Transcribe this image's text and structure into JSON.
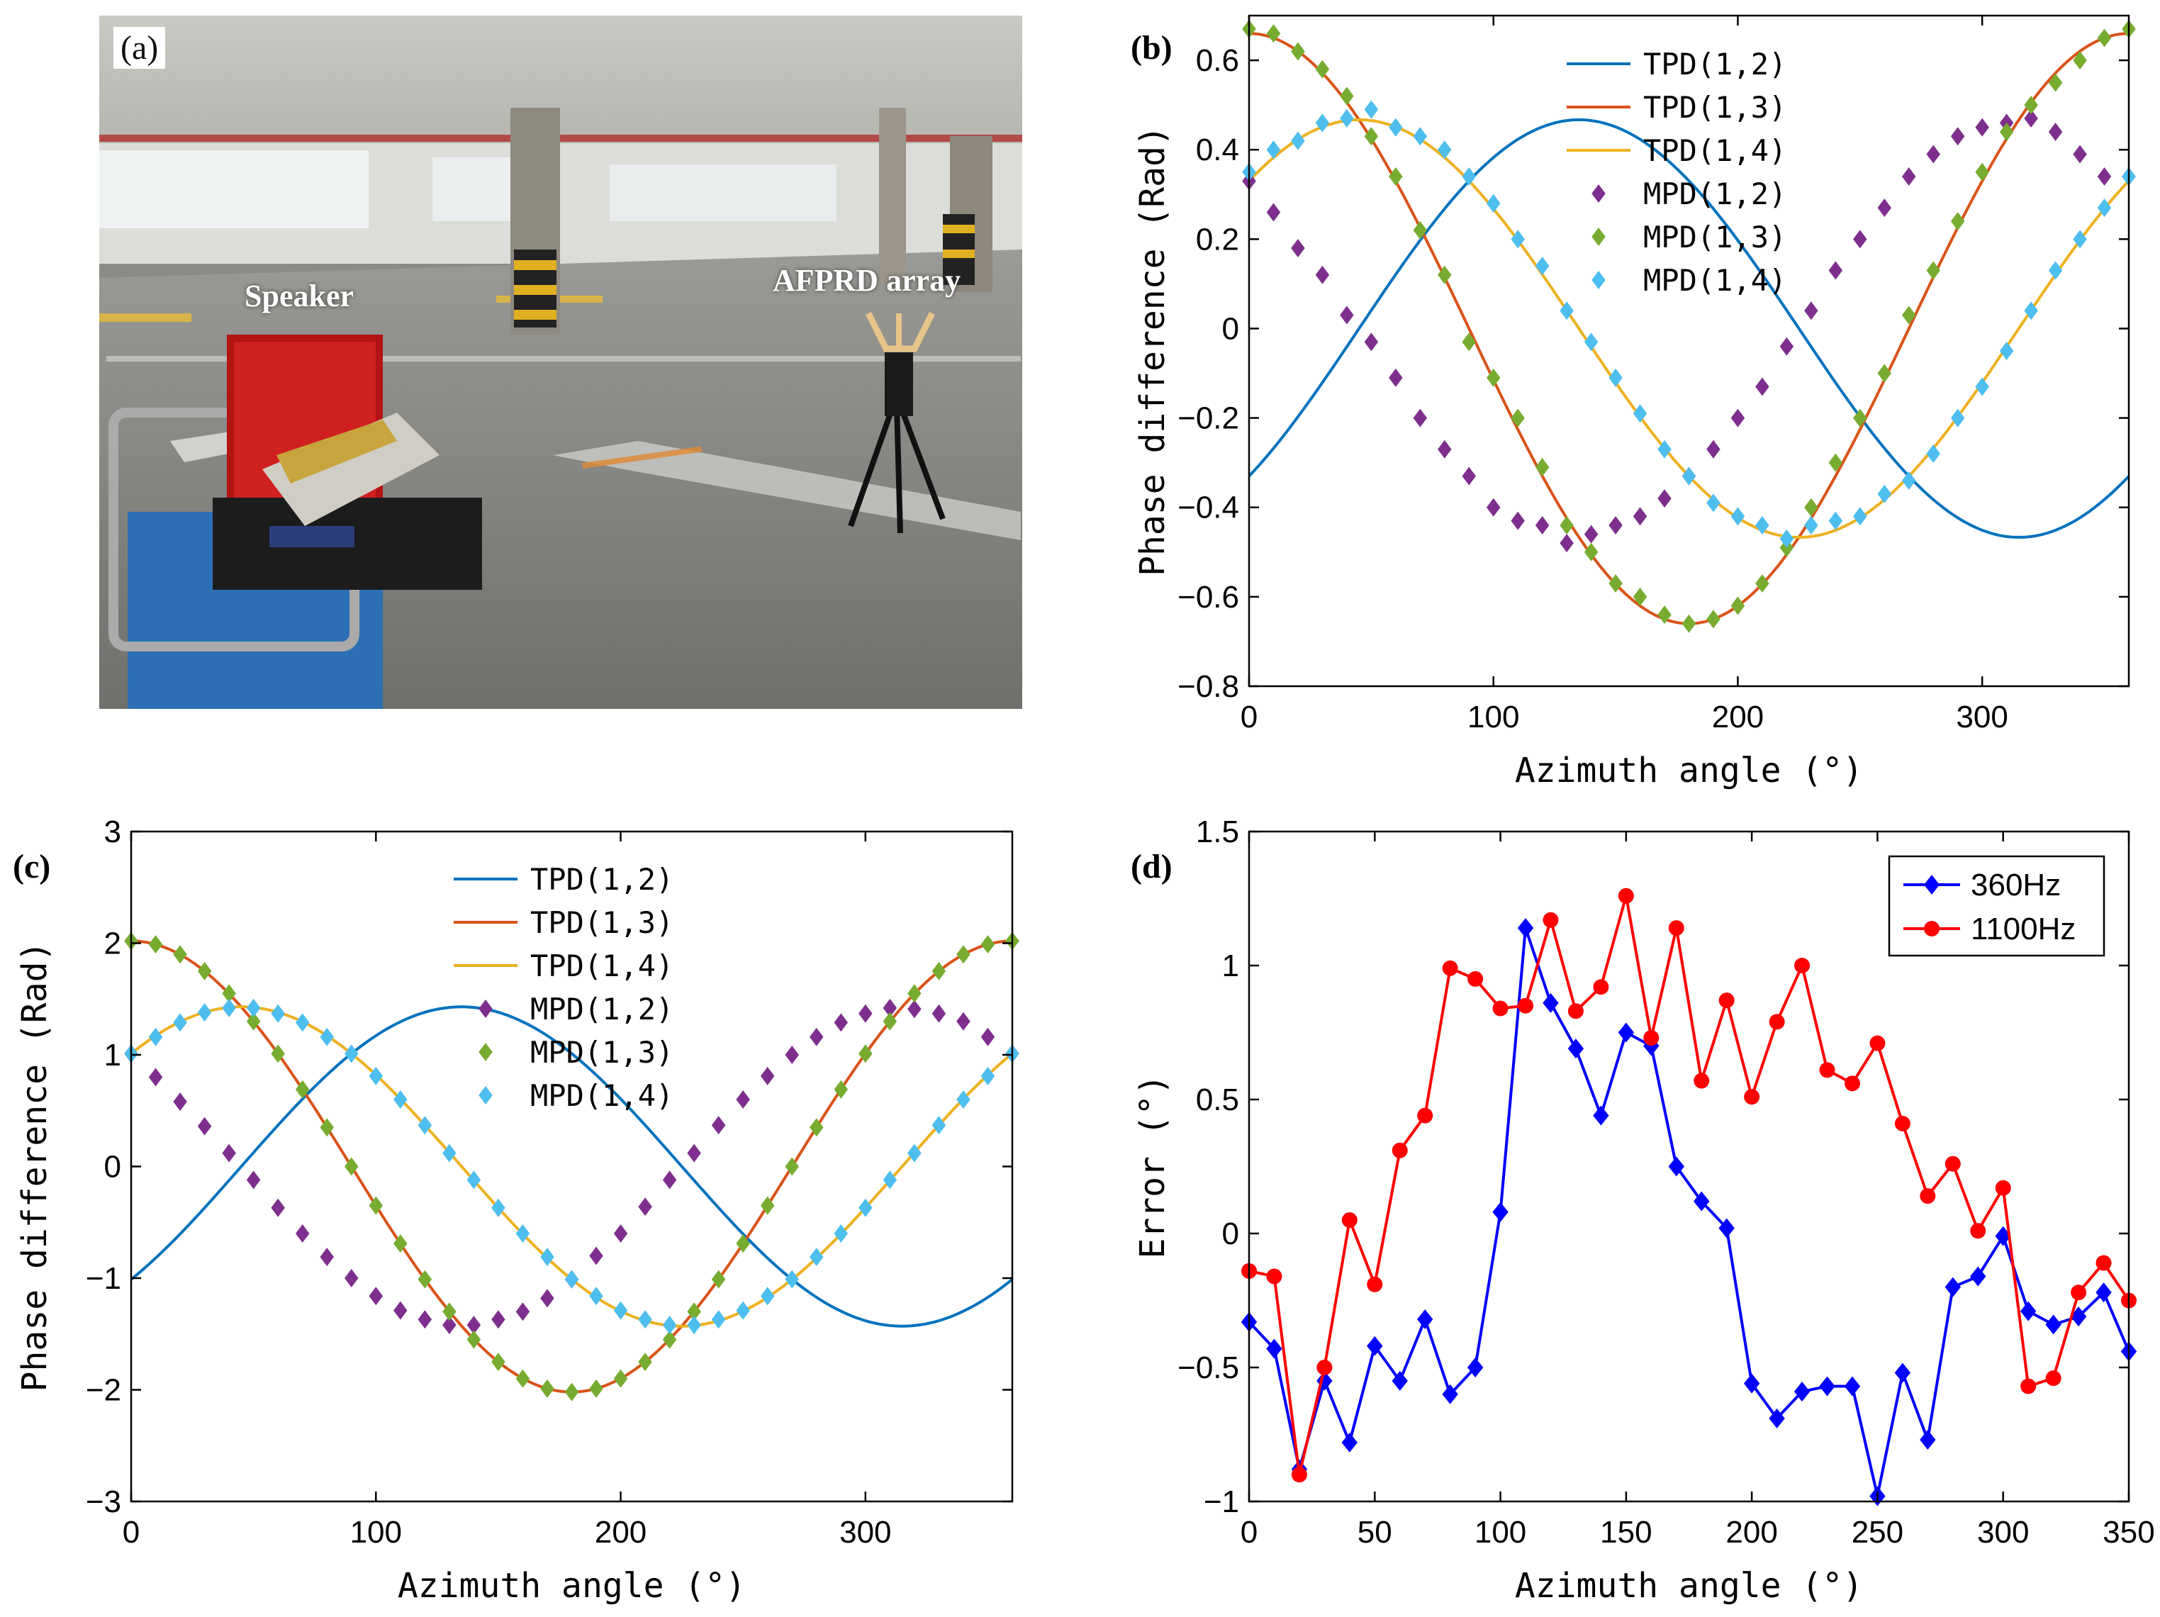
{
  "photo_panel": {
    "label": "(a)",
    "speaker_label": "Speaker",
    "array_label": "AFPRD array"
  },
  "chart_data": [
    {
      "panel": "(b)",
      "type": "line",
      "xlabel": "Azimuth angle (°)",
      "ylabel": "Phase difference (Rad)",
      "xlim": [
        0,
        360
      ],
      "ylim": [
        -0.8,
        0.7
      ],
      "xticks": [
        0,
        100,
        200,
        300
      ],
      "yticks": [
        -0.8,
        -0.6,
        -0.4,
        -0.2,
        0,
        0.2,
        0.4,
        0.6
      ],
      "ytick_labels": [
        "−0.8",
        "−0.6",
        "−0.4",
        "−0.2",
        "0",
        "0.2",
        "0.4",
        "0.6"
      ],
      "legend_position": "top-center",
      "x": [
        0,
        10,
        20,
        30,
        40,
        50,
        60,
        70,
        80,
        90,
        100,
        110,
        120,
        130,
        140,
        150,
        160,
        170,
        180,
        190,
        200,
        210,
        220,
        230,
        240,
        250,
        260,
        270,
        280,
        290,
        300,
        310,
        320,
        330,
        340,
        350,
        360
      ],
      "series": [
        {
          "name": "TPD(1,2)",
          "style": "line",
          "color": "#0072BD",
          "amplitude": 0.467,
          "phase_deg": 135
        },
        {
          "name": "TPD(1,3)",
          "style": "line",
          "color": "#D95319",
          "amplitude": 0.66,
          "phase_deg": 0
        },
        {
          "name": "TPD(1,4)",
          "style": "line",
          "color": "#EDB120",
          "amplitude": 0.467,
          "phase_deg": 45
        },
        {
          "name": "MPD(1,2)",
          "style": "marker",
          "color": "#7E2F8E",
          "values": [
            0.33,
            0.26,
            0.18,
            0.12,
            0.03,
            -0.03,
            -0.11,
            -0.2,
            -0.27,
            -0.33,
            -0.4,
            -0.43,
            -0.44,
            -0.48,
            -0.46,
            -0.44,
            -0.42,
            -0.38,
            -0.33,
            -0.27,
            -0.2,
            -0.13,
            -0.04,
            0.04,
            0.13,
            0.2,
            0.27,
            0.34,
            0.39,
            0.43,
            0.45,
            0.46,
            0.47,
            0.44,
            0.39,
            0.34,
            0.34
          ]
        },
        {
          "name": "MPD(1,3)",
          "style": "marker",
          "color": "#77AC30",
          "values": [
            0.67,
            0.66,
            0.62,
            0.58,
            0.52,
            0.43,
            0.34,
            0.22,
            0.12,
            -0.03,
            -0.11,
            -0.2,
            -0.31,
            -0.44,
            -0.5,
            -0.57,
            -0.6,
            -0.64,
            -0.66,
            -0.65,
            -0.62,
            -0.57,
            -0.49,
            -0.4,
            -0.3,
            -0.2,
            -0.1,
            0.03,
            0.13,
            0.24,
            0.35,
            0.44,
            0.5,
            0.55,
            0.6,
            0.65,
            0.67
          ]
        },
        {
          "name": "MPD(1,4)",
          "style": "marker",
          "color": "#4DBEEE",
          "values": [
            0.35,
            0.4,
            0.42,
            0.46,
            0.47,
            0.49,
            0.45,
            0.43,
            0.4,
            0.34,
            0.28,
            0.2,
            0.14,
            0.04,
            -0.03,
            -0.11,
            -0.19,
            -0.27,
            -0.33,
            -0.39,
            -0.42,
            -0.44,
            -0.47,
            -0.44,
            -0.43,
            -0.42,
            -0.37,
            -0.34,
            -0.28,
            -0.2,
            -0.13,
            -0.05,
            0.04,
            0.13,
            0.2,
            0.27,
            0.34
          ]
        }
      ]
    },
    {
      "panel": "(c)",
      "type": "line",
      "xlabel": "Azimuth angle (°)",
      "ylabel": "Phase difference (Rad)",
      "xlim": [
        0,
        360
      ],
      "ylim": [
        -3,
        3
      ],
      "xticks": [
        0,
        100,
        200,
        300
      ],
      "yticks": [
        -3,
        -2,
        -1,
        0,
        1,
        2,
        3
      ],
      "ytick_labels": [
        "−3",
        "−2",
        "−1",
        "0",
        "1",
        "2",
        "3"
      ],
      "legend_position": "top-center",
      "x": [
        0,
        10,
        20,
        30,
        40,
        50,
        60,
        70,
        80,
        90,
        100,
        110,
        120,
        130,
        140,
        150,
        160,
        170,
        180,
        190,
        200,
        210,
        220,
        230,
        240,
        250,
        260,
        270,
        280,
        290,
        300,
        310,
        320,
        330,
        340,
        350,
        360
      ],
      "series": [
        {
          "name": "TPD(1,2)",
          "style": "line",
          "color": "#0072BD",
          "amplitude": 1.43,
          "phase_deg": 135
        },
        {
          "name": "TPD(1,3)",
          "style": "line",
          "color": "#D95319",
          "amplitude": 2.02,
          "phase_deg": 0
        },
        {
          "name": "TPD(1,4)",
          "style": "line",
          "color": "#EDB120",
          "amplitude": 1.43,
          "phase_deg": 45
        },
        {
          "name": "MPD(1,2)",
          "style": "marker",
          "color": "#7E2F8E",
          "values": [
            1.01,
            0.8,
            0.58,
            0.36,
            0.12,
            -0.12,
            -0.37,
            -0.6,
            -0.81,
            -1.0,
            -1.16,
            -1.29,
            -1.37,
            -1.42,
            -1.42,
            -1.37,
            -1.3,
            -1.18,
            -1.01,
            -0.8,
            -0.6,
            -0.36,
            -0.12,
            0.12,
            0.37,
            0.6,
            0.81,
            1.0,
            1.16,
            1.29,
            1.37,
            1.42,
            1.41,
            1.37,
            1.3,
            1.16,
            1.01
          ]
        },
        {
          "name": "MPD(1,3)",
          "style": "marker",
          "color": "#77AC30",
          "values": [
            2.02,
            1.99,
            1.9,
            1.75,
            1.55,
            1.3,
            1.01,
            0.69,
            0.35,
            0.0,
            -0.35,
            -0.69,
            -1.01,
            -1.3,
            -1.55,
            -1.75,
            -1.9,
            -1.99,
            -2.02,
            -1.99,
            -1.9,
            -1.75,
            -1.55,
            -1.3,
            -1.01,
            -0.69,
            -0.35,
            0.0,
            0.35,
            0.69,
            1.01,
            1.3,
            1.55,
            1.75,
            1.9,
            1.99,
            2.02
          ]
        },
        {
          "name": "MPD(1,4)",
          "style": "marker",
          "color": "#4DBEEE",
          "values": [
            1.01,
            1.16,
            1.29,
            1.38,
            1.42,
            1.42,
            1.37,
            1.29,
            1.16,
            1.01,
            0.81,
            0.6,
            0.37,
            0.12,
            -0.12,
            -0.37,
            -0.6,
            -0.81,
            -1.01,
            -1.16,
            -1.29,
            -1.37,
            -1.42,
            -1.42,
            -1.37,
            -1.29,
            -1.16,
            -1.01,
            -0.81,
            -0.6,
            -0.37,
            -0.12,
            0.12,
            0.37,
            0.6,
            0.81,
            1.01
          ]
        }
      ]
    },
    {
      "panel": "(d)",
      "type": "line",
      "xlabel": "Azimuth angle (°)",
      "ylabel": "Error (°)",
      "xlim": [
        0,
        350
      ],
      "ylim": [
        -1,
        1.5
      ],
      "xticks": [
        0,
        50,
        100,
        150,
        200,
        250,
        300,
        350
      ],
      "yticks": [
        -1,
        -0.5,
        0,
        0.5,
        1,
        1.5
      ],
      "ytick_labels": [
        "−1",
        "−0.5",
        "0",
        "0.5",
        "1",
        "1.5"
      ],
      "legend_position": "top-right",
      "x": [
        0,
        10,
        20,
        30,
        40,
        50,
        60,
        70,
        80,
        90,
        100,
        110,
        120,
        130,
        140,
        150,
        160,
        170,
        180,
        190,
        200,
        210,
        220,
        230,
        240,
        250,
        260,
        270,
        280,
        290,
        300,
        310,
        320,
        330,
        340,
        350
      ],
      "series": [
        {
          "name": "360Hz",
          "style": "line+diamond",
          "color": "#0000FF",
          "values": [
            -0.33,
            -0.43,
            -0.88,
            -0.55,
            -0.78,
            -0.42,
            -0.55,
            -0.32,
            -0.6,
            -0.5,
            0.08,
            1.14,
            0.86,
            0.69,
            0.44,
            0.75,
            0.7,
            0.25,
            0.12,
            0.02,
            -0.56,
            -0.69,
            -0.59,
            -0.57,
            -0.57,
            -0.98,
            -0.52,
            -0.77,
            -0.2,
            -0.16,
            -0.01,
            -0.29,
            -0.34,
            -0.31,
            -0.22,
            -0.44
          ]
        },
        {
          "name": "1100Hz",
          "style": "line+circle",
          "color": "#FF0000",
          "values": [
            -0.14,
            -0.16,
            -0.9,
            -0.5,
            0.05,
            -0.19,
            0.31,
            0.44,
            0.99,
            0.95,
            0.84,
            0.85,
            1.17,
            0.83,
            0.92,
            1.26,
            0.73,
            1.14,
            0.57,
            0.87,
            0.51,
            0.79,
            1.0,
            0.61,
            0.56,
            0.71,
            0.41,
            0.14,
            0.26,
            0.01,
            0.17,
            -0.57,
            -0.54,
            -0.22,
            -0.11,
            -0.25
          ]
        }
      ]
    }
  ]
}
